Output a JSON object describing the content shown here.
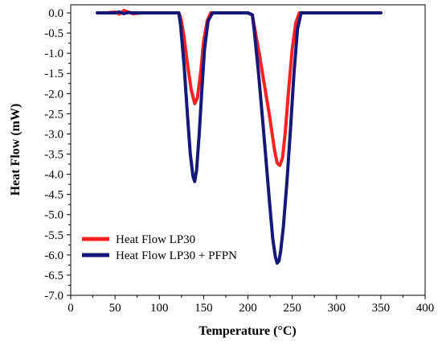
{
  "chart_data": {
    "type": "line",
    "title": "",
    "xlabel": "Temperature (°C)",
    "ylabel": "Heat Flow (mW)",
    "xlim": [
      0,
      400
    ],
    "ylim": [
      -7.0,
      0.2
    ],
    "xticks": [
      "0",
      "50",
      "100",
      "150",
      "200",
      "250",
      "300",
      "350",
      "400"
    ],
    "yticks": [
      "0.0",
      "-0.5",
      "-1.0",
      "-1.5",
      "-2.0",
      "-2.5",
      "-3.0",
      "-3.5",
      "-4.0",
      "-4.5",
      "-5.0",
      "-5.5",
      "-6.0",
      "-6.5",
      "-7.0"
    ],
    "grid": false,
    "legend_position": "bottom-left",
    "series": [
      {
        "name": "Heat Flow LP30",
        "color": "#ff2020",
        "x": [
          30,
          40,
          50,
          55,
          60,
          65,
          70,
          80,
          100,
          122,
          124,
          128,
          132,
          136,
          140,
          143,
          147,
          150,
          154,
          158,
          165,
          180,
          200,
          205,
          207,
          212,
          218,
          224,
          230,
          233,
          236,
          239,
          242,
          246,
          250,
          254,
          258,
          270,
          300,
          350
        ],
        "y": [
          0.0,
          0.0,
          0.02,
          -0.03,
          0.06,
          0.02,
          -0.02,
          0.0,
          0.0,
          0.0,
          -0.1,
          -0.6,
          -1.3,
          -1.9,
          -2.25,
          -2.1,
          -1.4,
          -0.7,
          -0.2,
          0.0,
          0.0,
          0.0,
          0.0,
          -0.05,
          -0.3,
          -0.9,
          -1.7,
          -2.5,
          -3.4,
          -3.72,
          -3.78,
          -3.6,
          -3.0,
          -1.9,
          -0.9,
          -0.25,
          0.0,
          0.0,
          0.0,
          0.0
        ]
      },
      {
        "name": "Heat Flow LP30 + PFPN",
        "color": "#14187a",
        "x": [
          30,
          40,
          50,
          55,
          60,
          65,
          70,
          80,
          100,
          122,
          124,
          128,
          132,
          135,
          138,
          140,
          142,
          145,
          148,
          151,
          155,
          160,
          170,
          180,
          200,
          205,
          207,
          212,
          218,
          224,
          228,
          231,
          233,
          235,
          237,
          240,
          244,
          248,
          252,
          256,
          260,
          270,
          300,
          350
        ],
        "y": [
          0.0,
          0.0,
          0.0,
          0.02,
          -0.02,
          0.01,
          0.0,
          0.0,
          0.0,
          0.0,
          -0.3,
          -1.3,
          -2.6,
          -3.5,
          -4.05,
          -4.18,
          -3.9,
          -3.0,
          -1.9,
          -0.9,
          -0.2,
          0.0,
          0.0,
          0.0,
          0.0,
          -0.05,
          -0.4,
          -1.5,
          -3.0,
          -4.6,
          -5.6,
          -6.05,
          -6.2,
          -6.15,
          -5.9,
          -5.3,
          -4.2,
          -2.9,
          -1.5,
          -0.4,
          0.0,
          0.0,
          0.0,
          0.0
        ]
      }
    ]
  }
}
